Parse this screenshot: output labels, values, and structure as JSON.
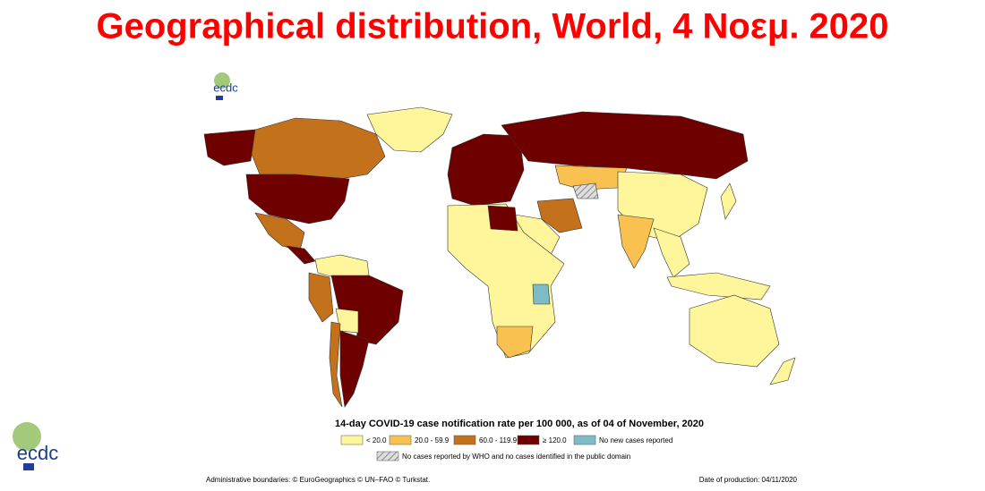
{
  "header": {
    "title": "Geographical distribution, World, 4 Νοεμ. 2020"
  },
  "logo": {
    "text": "ecdc"
  },
  "legend": {
    "title": "14-day COVID-19 case notification rate per 100 000, as of 04 of November, 2020",
    "items": [
      {
        "label": "< 20.0",
        "color": "#fff59a"
      },
      {
        "label": "20.0 - 59.9",
        "color": "#f8c150"
      },
      {
        "label": "60.0 - 119.9",
        "color": "#c4711c"
      },
      {
        "label": "≥ 120.0",
        "color": "#6e0000"
      },
      {
        "label": "No new cases reported",
        "color": "#7dbcc6"
      }
    ],
    "hatched": {
      "label": "No cases reported by WHO and no cases identified in the public domain",
      "color": "#8a8a8a"
    }
  },
  "footer": {
    "left": "Administrative boundaries: © EuroGeographics © UN–FAO © Turkstat.",
    "right": "Date of production: 04/11/2020"
  }
}
